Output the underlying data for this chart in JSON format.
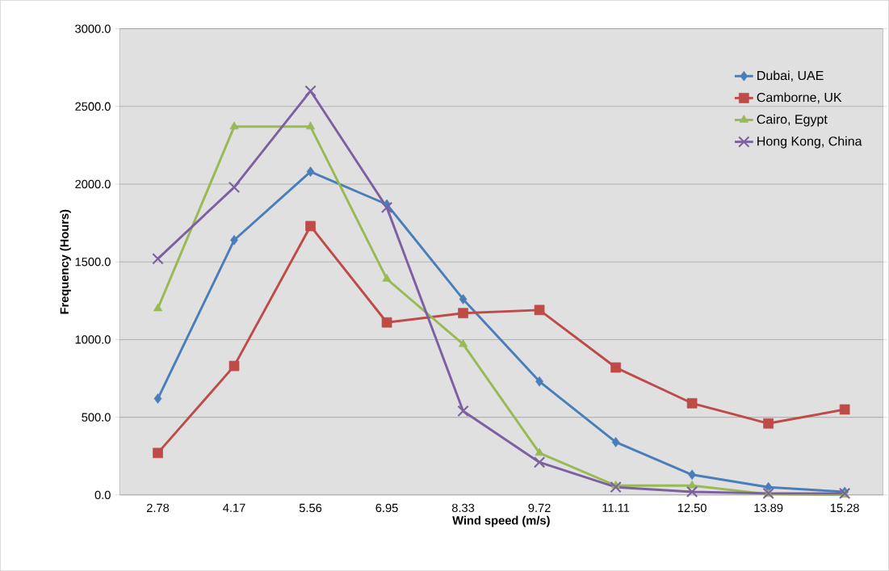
{
  "chart_data": {
    "type": "line",
    "xlabel": "Wind speed (m/s)",
    "ylabel": "Frequency (Hours)",
    "categories": [
      "2.78",
      "4.17",
      "5.56",
      "6.95",
      "8.33",
      "9.72",
      "11.11",
      "12.50",
      "13.89",
      "15.28"
    ],
    "series": [
      {
        "name": "Dubai, UAE",
        "color": "#4a7ebb",
        "marker": "diamond",
        "values": [
          620,
          1640,
          2080,
          1870,
          1260,
          730,
          340,
          130,
          50,
          20
        ]
      },
      {
        "name": "Camborne, UK",
        "color": "#be4b48",
        "marker": "square",
        "values": [
          270,
          830,
          1730,
          1110,
          1170,
          1190,
          820,
          590,
          460,
          550
        ]
      },
      {
        "name": "Cairo, Egypt",
        "color": "#98b954",
        "marker": "triangle",
        "values": [
          1200,
          2370,
          2370,
          1390,
          970,
          270,
          60,
          60,
          5,
          0
        ]
      },
      {
        "name": "Hong Kong, China",
        "color": "#7d60a0",
        "marker": "cross",
        "values": [
          1520,
          1980,
          2600,
          1850,
          540,
          210,
          50,
          20,
          10,
          10
        ]
      }
    ],
    "ylim": [
      0,
      3000
    ],
    "yticks": [
      {
        "value": 0,
        "label": "0.0"
      },
      {
        "value": 500,
        "label": "500.0"
      },
      {
        "value": 1000,
        "label": "1000.0"
      },
      {
        "value": 1500,
        "label": "1500.0"
      },
      {
        "value": 2000,
        "label": "2000.0"
      },
      {
        "value": 2500,
        "label": "2500.0"
      },
      {
        "value": 3000,
        "label": "3000.0"
      }
    ],
    "grid": "y",
    "legend": "top right"
  }
}
